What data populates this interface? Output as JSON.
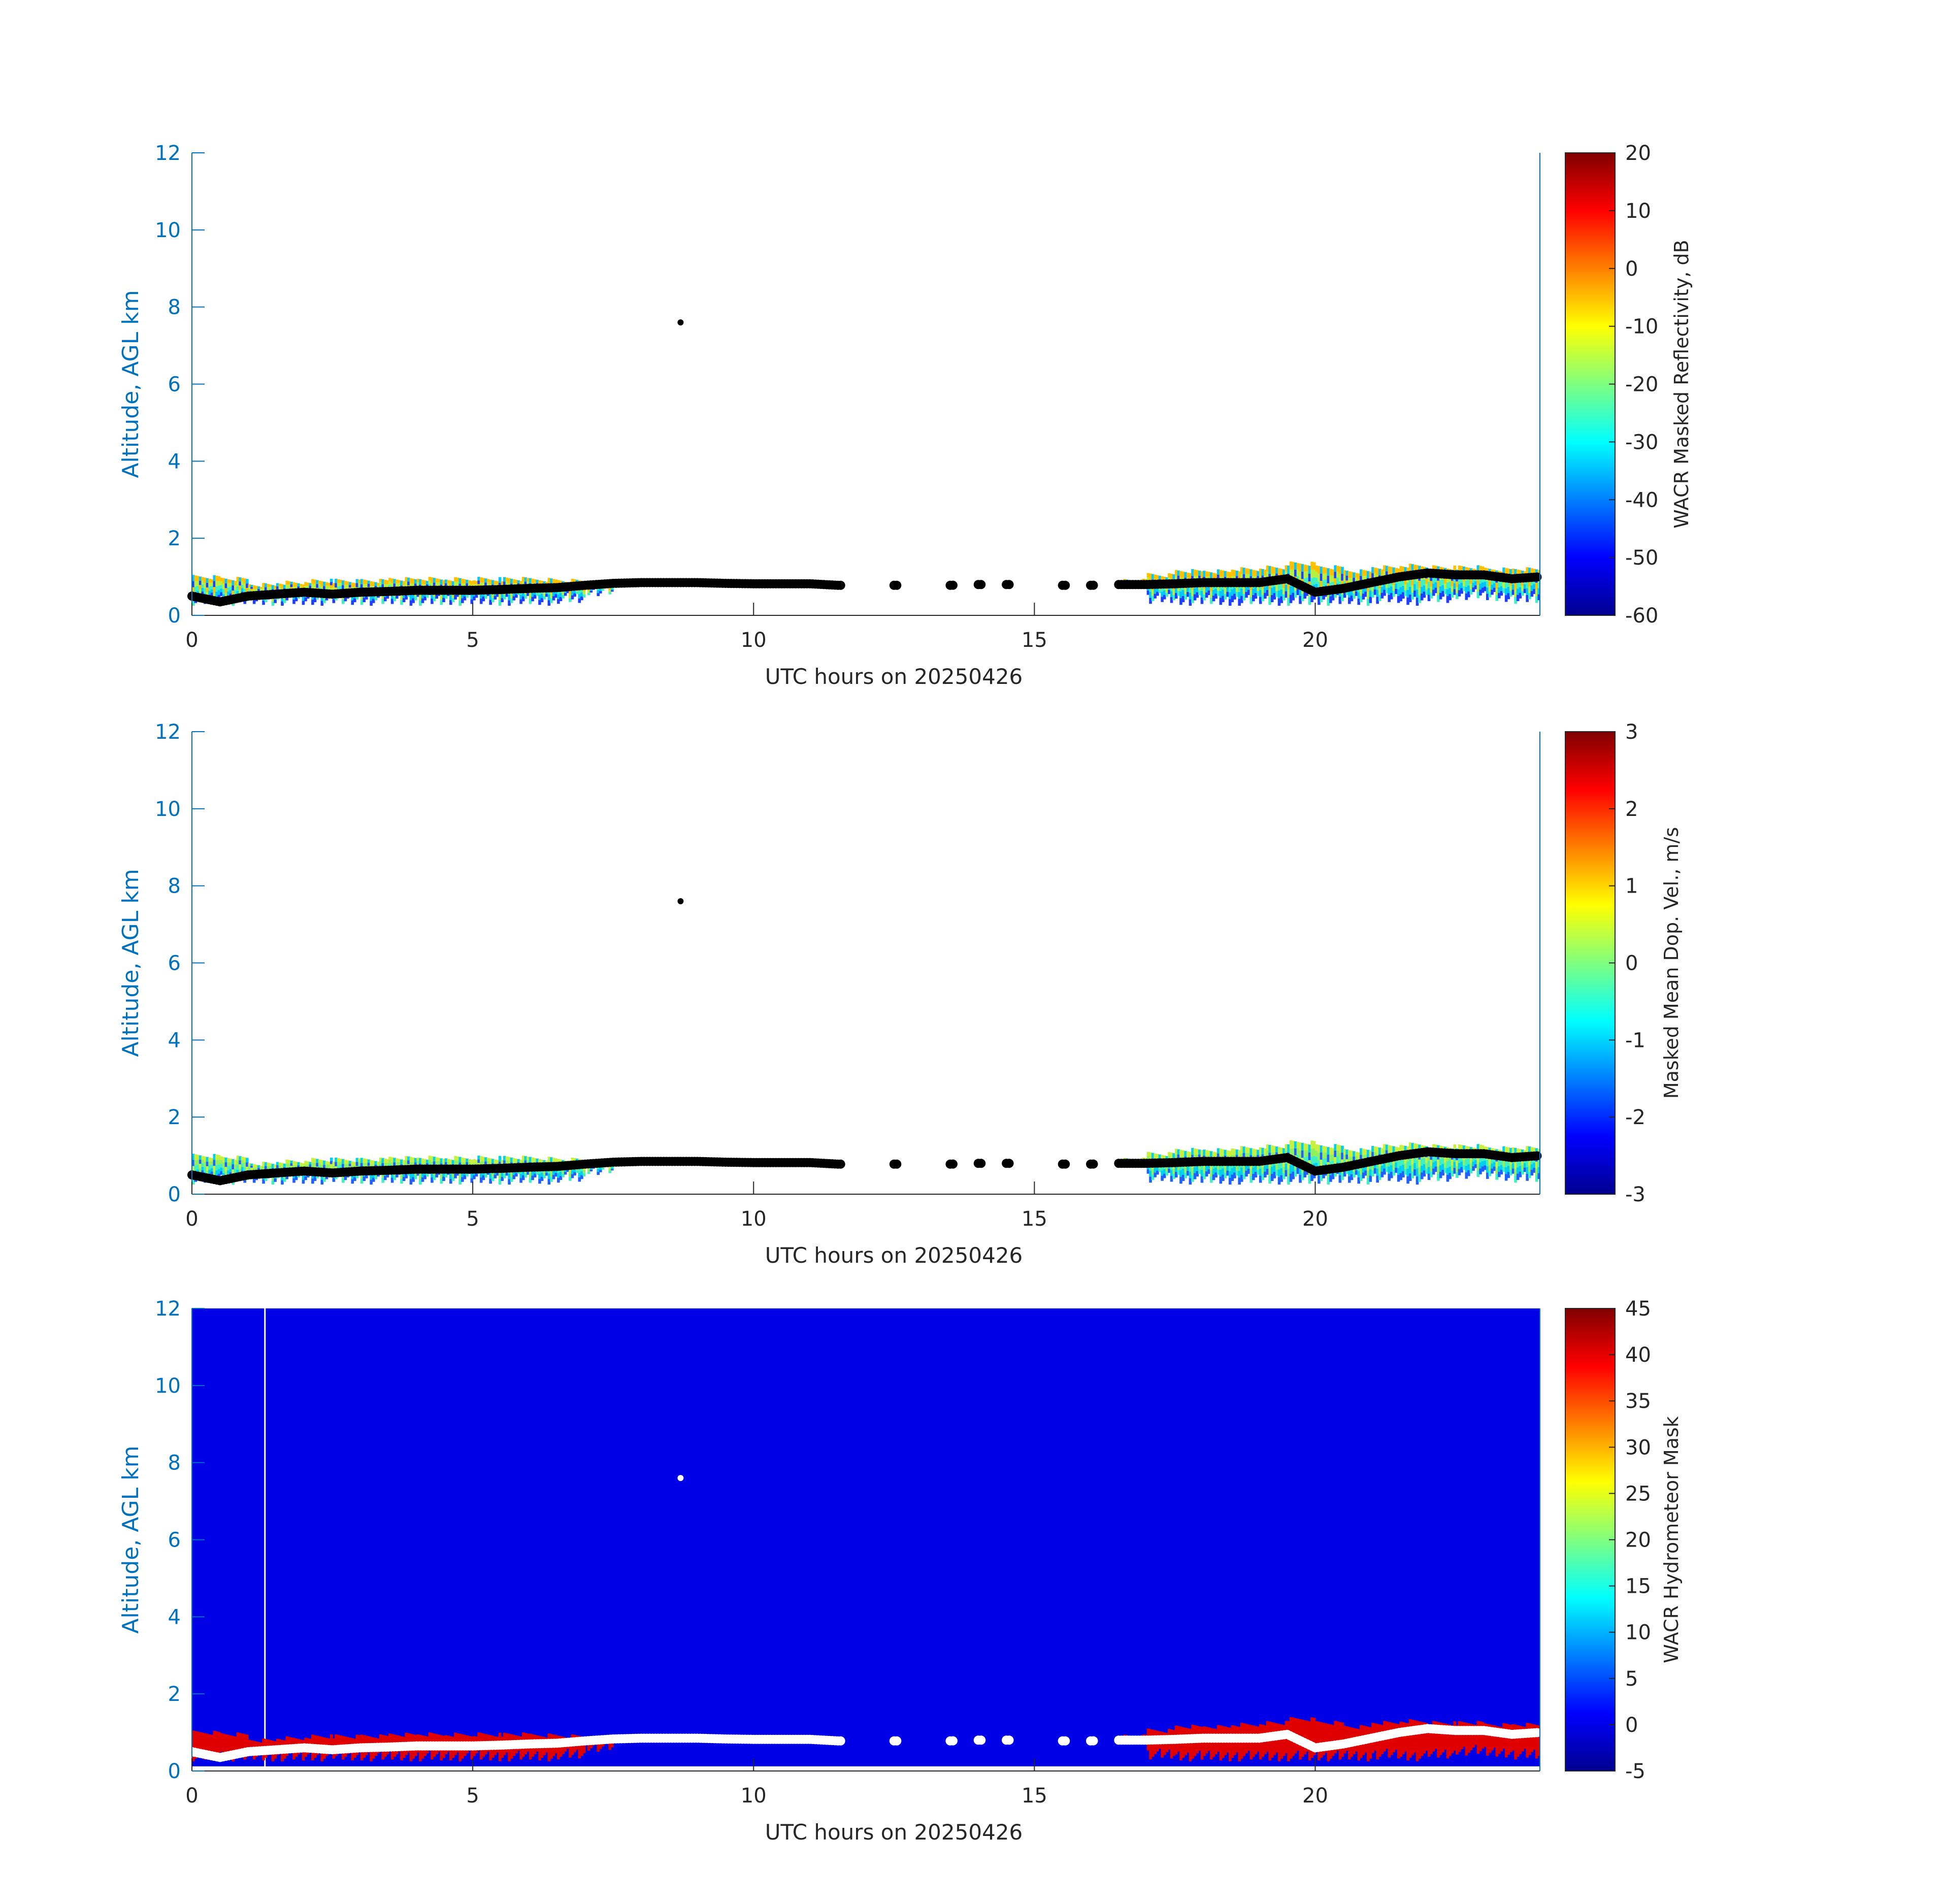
{
  "chart_data": [
    {
      "type": "heatmap",
      "title": "",
      "xlabel": "UTC hours on 20250426",
      "ylabel": "Altitude, AGL km",
      "xlim": [
        0,
        24
      ],
      "ylim": [
        0,
        12
      ],
      "xticks": [
        "0",
        "5",
        "10",
        "15",
        "20"
      ],
      "yticks": [
        "0",
        "2",
        "4",
        "6",
        "8",
        "10",
        "12"
      ],
      "colorbar": {
        "label": "WACR Masked Reflectivity, dB",
        "range": [
          -60,
          20
        ],
        "ticks": [
          "20",
          "10",
          "0",
          "-10",
          "-20",
          "-30",
          "-40",
          "-50",
          "-60"
        ],
        "colormap": "jet"
      },
      "background": "#ffffff",
      "echo_palette": [
        "#1f3fff",
        "#00c8ff",
        "#40f0c0",
        "#b8f040",
        "#ffc000"
      ],
      "marker_color": "#000000"
    },
    {
      "type": "heatmap",
      "title": "",
      "xlabel": "UTC hours on 20250426",
      "ylabel": "Altitude, AGL km",
      "xlim": [
        0,
        24
      ],
      "ylim": [
        0,
        12
      ],
      "xticks": [
        "0",
        "5",
        "10",
        "15",
        "20"
      ],
      "yticks": [
        "0",
        "2",
        "4",
        "6",
        "8",
        "10",
        "12"
      ],
      "colorbar": {
        "label": "Masked Mean Dop. Vel., m/s",
        "range": [
          -3,
          3
        ],
        "ticks": [
          "3",
          "2",
          "1",
          "0",
          "-1",
          "-2",
          "-3"
        ],
        "colormap": "jet"
      },
      "background": "#ffffff",
      "echo_palette": [
        "#2060ff",
        "#00d0f0",
        "#40f0c0",
        "#90f060",
        "#c8f040"
      ],
      "marker_color": "#000000"
    },
    {
      "type": "heatmap",
      "title": "",
      "xlabel": "UTC hours on 20250426",
      "ylabel": "Altitude, AGL km",
      "xlim": [
        0,
        24
      ],
      "ylim": [
        0,
        12
      ],
      "xticks": [
        "0",
        "5",
        "10",
        "15",
        "20"
      ],
      "yticks": [
        "0",
        "2",
        "4",
        "6",
        "8",
        "10",
        "12"
      ],
      "colorbar": {
        "label": "WACR Hydrometeor Mask",
        "range": [
          -5,
          45
        ],
        "ticks": [
          "45",
          "40",
          "35",
          "30",
          "25",
          "20",
          "15",
          "10",
          "5",
          "0",
          "-5"
        ],
        "colormap": "jet"
      },
      "background": "#0000e6",
      "echo_palette": [
        "#e00000",
        "#e00000",
        "#e00000",
        "#e00000",
        "#e00000"
      ],
      "marker_color": "#ffffff"
    }
  ],
  "profile": {
    "hours": [
      0,
      0.5,
      1,
      1.5,
      2,
      2.5,
      3,
      3.5,
      4,
      4.5,
      5,
      5.5,
      6,
      6.5,
      7,
      7.5,
      8,
      8.5,
      9,
      9.5,
      10,
      10.5,
      11,
      11.5,
      12,
      12.5,
      13,
      13.5,
      14,
      14.5,
      15,
      15.5,
      16,
      16.5,
      17,
      17.5,
      18,
      18.5,
      19,
      19.5,
      20,
      20.5,
      21,
      21.5,
      22,
      22.5,
      23,
      23.5,
      24
    ],
    "cloud_base_km": [
      0.5,
      0.35,
      0.5,
      0.55,
      0.6,
      0.55,
      0.6,
      0.62,
      0.65,
      0.65,
      0.65,
      0.67,
      0.7,
      0.72,
      0.78,
      0.83,
      0.85,
      0.85,
      0.85,
      0.83,
      0.82,
      0.82,
      0.82,
      0.78,
      null,
      0.78,
      null,
      0.78,
      0.8,
      0.8,
      null,
      0.78,
      0.78,
      0.8,
      0.8,
      0.82,
      0.85,
      0.85,
      0.85,
      0.95,
      0.6,
      0.7,
      0.85,
      1.0,
      1.1,
      1.05,
      1.05,
      0.95,
      1.0
    ],
    "echo_top_km": [
      1.05,
      1.0,
      0.85,
      0.9,
      0.95,
      0.95,
      0.95,
      1.0,
      1.0,
      1.0,
      1.0,
      1.0,
      0.98,
      0.95,
      0.9,
      null,
      null,
      null,
      null,
      null,
      null,
      null,
      null,
      null,
      null,
      null,
      null,
      null,
      null,
      null,
      null,
      null,
      null,
      0.95,
      1.1,
      1.2,
      1.2,
      1.25,
      1.3,
      1.4,
      1.3,
      1.2,
      1.3,
      1.35,
      1.3,
      1.3,
      1.25,
      1.25,
      1.25
    ],
    "echo_bottom_km": [
      0.25,
      0.25,
      0.25,
      0.25,
      0.25,
      0.25,
      0.25,
      0.25,
      0.25,
      0.25,
      0.25,
      0.25,
      0.25,
      0.3,
      0.5,
      null,
      null,
      null,
      null,
      null,
      null,
      null,
      null,
      null,
      null,
      null,
      null,
      null,
      null,
      null,
      null,
      null,
      null,
      0.7,
      0.3,
      0.25,
      0.25,
      0.25,
      0.25,
      0.25,
      0.25,
      0.25,
      0.3,
      0.25,
      0.3,
      0.4,
      0.35,
      0.3,
      0.3
    ],
    "outlier": {
      "hour": 8.7,
      "km": 7.6
    }
  }
}
